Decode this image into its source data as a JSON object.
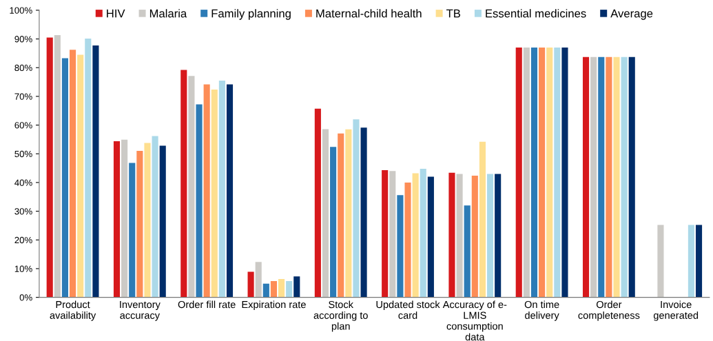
{
  "chart_data": {
    "type": "bar",
    "categories": [
      "Product\navailability",
      "Inventory\naccuracy",
      "Order fill rate",
      "Expiration rate",
      "Stock\naccording to\nplan",
      "Updated stock\ncard",
      "Accuracy of e-\nLMIS\nconsumption\ndata",
      "On time\ndelivery",
      "Order\ncompleteness",
      "Invoice\ngenerated"
    ],
    "series": [
      {
        "name": "HIV",
        "color": "#d7191c",
        "values": [
          90.5,
          54.4,
          79.2,
          8.9,
          65.7,
          44.3,
          43.4,
          87,
          83.7,
          null
        ]
      },
      {
        "name": "Malaria",
        "color": "#cccac6",
        "values": [
          91.3,
          54.9,
          77.1,
          12.3,
          58.6,
          44.0,
          43.0,
          87,
          83.7,
          25.2
        ]
      },
      {
        "name": "Family planning",
        "color": "#2c7bb6",
        "values": [
          83.3,
          46.8,
          67.2,
          4.8,
          52.4,
          35.6,
          32.0,
          87,
          83.7,
          null
        ]
      },
      {
        "name": "Maternal-child health",
        "color": "#fd8d56",
        "values": [
          86.2,
          51.0,
          74.2,
          5.7,
          57.1,
          40.0,
          42.4,
          87,
          83.7,
          null
        ]
      },
      {
        "name": "TB",
        "color": "#fedf8f",
        "values": [
          84.5,
          53.8,
          72.4,
          6.4,
          58.5,
          43.2,
          54.2,
          87,
          83.7,
          null
        ]
      },
      {
        "name": "Essential medicines",
        "color": "#abd9e9",
        "values": [
          90.1,
          56.2,
          75.5,
          5.7,
          62.0,
          44.8,
          43.0,
          87,
          83.7,
          25.2
        ]
      },
      {
        "name": "Average",
        "color": "#002d6a",
        "values": [
          87.7,
          52.8,
          74.2,
          7.3,
          59.1,
          42.0,
          43.0,
          87,
          83.7,
          25.2
        ]
      }
    ],
    "ylim": [
      0,
      100
    ],
    "yticks": [
      {
        "value": 0,
        "label": "0%"
      },
      {
        "value": 10,
        "label": "10%"
      },
      {
        "value": 20,
        "label": "20%"
      },
      {
        "value": 30,
        "label": "30%"
      },
      {
        "value": 40,
        "label": "40%"
      },
      {
        "value": 50,
        "label": "50%"
      },
      {
        "value": 60,
        "label": "60%"
      },
      {
        "value": 70,
        "label": "70%"
      },
      {
        "value": 80,
        "label": "80%"
      },
      {
        "value": 90,
        "label": "90%"
      },
      {
        "value": 100,
        "label": "100%"
      }
    ],
    "legend": "top",
    "grid": false
  }
}
